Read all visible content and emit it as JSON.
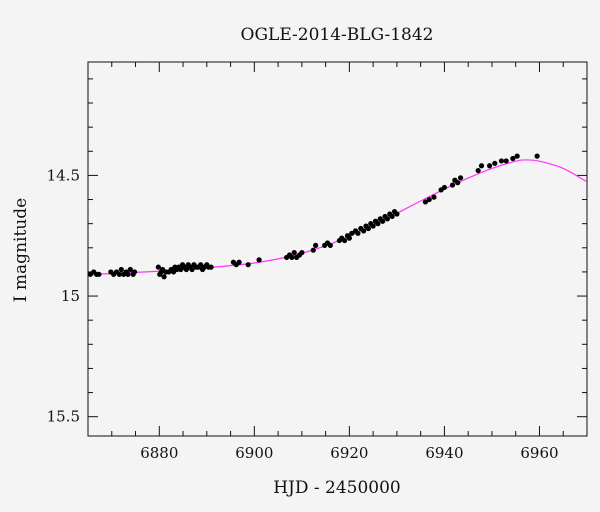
{
  "chart_data": {
    "type": "scatter",
    "title": "OGLE-2014-BLG-1842",
    "xlabel": "HJD - 2450000",
    "ylabel": "I magnitude",
    "xlim": [
      6865,
      6970
    ],
    "ylim": [
      15.58,
      14.03
    ],
    "y_inverted": true,
    "grid": false,
    "x_ticks": [
      6880,
      6900,
      6920,
      6940,
      6960
    ],
    "x_tick_labels": [
      "6880",
      "6900",
      "6920",
      "6940",
      "6960"
    ],
    "y_ticks": [
      14.5,
      15,
      15.5
    ],
    "y_tick_labels": [
      "14.5",
      "15",
      "15.5"
    ],
    "colors": {
      "points": "#000000",
      "model": "#ff33ff",
      "background": "#f4f4f4",
      "axes": "#111111"
    },
    "series": [
      {
        "kind": "points",
        "x": [
          6865.5,
          6866.2,
          6866.8,
          6867.3,
          6869.8,
          6870.4,
          6871.0,
          6871.6,
          6872.0,
          6872.5,
          6873.0,
          6873.4,
          6873.9,
          6874.5,
          6874.8,
          6879.8,
          6880.1,
          6880.4,
          6880.7,
          6881.0,
          6881.4,
          6882.0,
          6882.5,
          6883.0,
          6883.3,
          6883.7,
          6884.1,
          6884.5,
          6884.9,
          6885.3,
          6885.7,
          6886.1,
          6886.5,
          6886.9,
          6887.3,
          6887.8,
          6888.2,
          6888.7,
          6889.1,
          6889.5,
          6890.0,
          6890.4,
          6890.9,
          6895.6,
          6896.2,
          6896.8,
          6898.7,
          6901.0,
          6906.8,
          6907.4,
          6907.9,
          6908.4,
          6908.9,
          6909.5,
          6910.0,
          6912.4,
          6912.9,
          6914.8,
          6915.4,
          6916.0,
          6917.9,
          6918.4,
          6919.0,
          6919.6,
          6920.0,
          6920.5,
          6921.3,
          6921.8,
          6922.4,
          6923.0,
          6923.5,
          6924.0,
          6924.5,
          6925.0,
          6925.5,
          6926.0,
          6926.5,
          6927.0,
          6927.5,
          6928.0,
          6928.5,
          6929.0,
          6929.5,
          6930.0,
          6936.0,
          6936.8,
          6937.8,
          6939.3,
          6940.0,
          6941.7,
          6942.2,
          6942.8,
          6943.4,
          6947.1,
          6947.8,
          6949.5,
          6950.6,
          6952.0,
          6953.0,
          6954.4,
          6955.3,
          6959.5
        ],
        "y": [
          14.91,
          14.9,
          14.91,
          14.91,
          14.9,
          14.91,
          14.9,
          14.91,
          14.89,
          14.91,
          14.9,
          14.91,
          14.89,
          14.91,
          14.9,
          14.88,
          14.91,
          14.9,
          14.89,
          14.92,
          14.9,
          14.9,
          14.89,
          14.9,
          14.88,
          14.89,
          14.88,
          14.89,
          14.87,
          14.88,
          14.89,
          14.87,
          14.88,
          14.89,
          14.87,
          14.88,
          14.88,
          14.87,
          14.89,
          14.88,
          14.87,
          14.88,
          14.88,
          14.86,
          14.87,
          14.86,
          14.87,
          14.85,
          14.84,
          14.83,
          14.84,
          14.82,
          14.84,
          14.83,
          14.82,
          14.81,
          14.79,
          14.79,
          14.78,
          14.79,
          14.77,
          14.76,
          14.77,
          14.75,
          14.76,
          14.74,
          14.73,
          14.74,
          14.72,
          14.73,
          14.71,
          14.72,
          14.7,
          14.71,
          14.69,
          14.7,
          14.68,
          14.69,
          14.67,
          14.68,
          14.66,
          14.67,
          14.65,
          14.66,
          14.61,
          14.6,
          14.59,
          14.56,
          14.55,
          14.54,
          14.52,
          14.53,
          14.51,
          14.48,
          14.46,
          14.46,
          14.45,
          14.44,
          14.44,
          14.43,
          14.42,
          14.42
        ]
      },
      {
        "kind": "model",
        "x": [
          6865,
          6870,
          6875,
          6880,
          6885,
          6890,
          6895,
          6900,
          6905,
          6910,
          6915,
          6920,
          6925,
          6930,
          6935,
          6940,
          6945,
          6950,
          6955,
          6957,
          6960,
          6965,
          6970
        ],
        "y": [
          14.91,
          14.907,
          14.902,
          14.897,
          14.891,
          14.883,
          14.874,
          14.863,
          14.846,
          14.823,
          14.792,
          14.752,
          14.706,
          14.657,
          14.606,
          14.557,
          14.511,
          14.471,
          14.441,
          14.436,
          14.441,
          14.471,
          14.527
        ]
      }
    ]
  }
}
